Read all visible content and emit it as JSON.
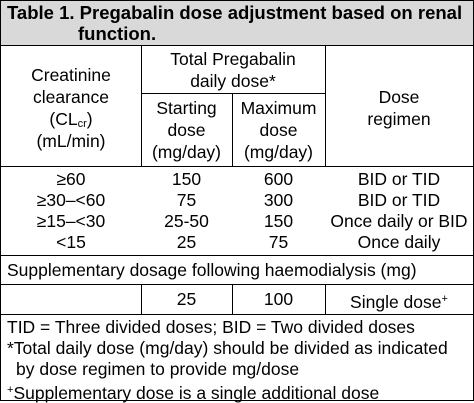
{
  "title": {
    "line1": "Table 1. Pregabalin dose adjustment based on renal",
    "line2": "function."
  },
  "headers": {
    "creatinine_line1": "Creatinine",
    "creatinine_line2": "clearance",
    "creatinine_line3_pre": "(CL",
    "creatinine_line3_sub": "cr",
    "creatinine_line3_post": ")",
    "creatinine_line4": "(mL/min)",
    "total_line1": "Total Pregabalin",
    "total_line2": "daily dose*",
    "starting_line1": "Starting",
    "starting_line2": "dose",
    "starting_line3": "(mg/day)",
    "maximum_line1": "Maximum",
    "maximum_line2": "dose",
    "maximum_line3": "(mg/day)",
    "regimen_line1": "Dose",
    "regimen_line2": "regimen"
  },
  "rows": [
    {
      "clearance": "≥60",
      "starting": "150",
      "maximum": "600",
      "regimen": "BID or TID"
    },
    {
      "clearance": "≥30–<60",
      "starting": "75",
      "maximum": "300",
      "regimen": "BID or TID"
    },
    {
      "clearance": "≥15–<30",
      "starting": "25-50",
      "maximum": "150",
      "regimen": "Once daily or BID"
    },
    {
      "clearance": "<15",
      "starting": "25",
      "maximum": "75",
      "regimen": "Once daily"
    }
  ],
  "supplementary": {
    "heading": "Supplementary dosage following haemodialysis (mg)",
    "starting": "25",
    "maximum": "100",
    "regimen": "Single dose",
    "regimen_mark": "+"
  },
  "footnotes": {
    "abbrev": "TID = Three divided doses; BID = Two divided doses",
    "star_line1": "*Total daily dose (mg/day) should be divided as indicated",
    "star_line2": "by dose regimen to provide mg/dose",
    "plus_mark": "+",
    "plus_text": "Supplementary dose is a single additional dose"
  }
}
